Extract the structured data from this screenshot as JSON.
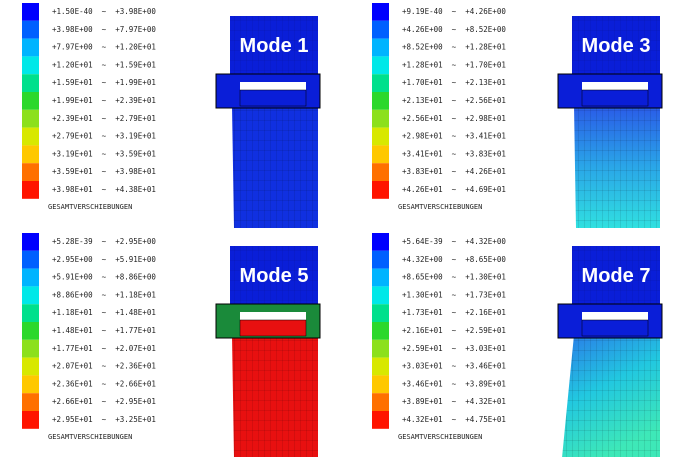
{
  "panels": [
    {
      "title": "Mode 1",
      "footer": "GESAMTVERSCHIEBUNGEN",
      "legend": [
        "+1.50E-40  ~  +3.98E+00",
        "+3.98E+00  ~  +7.97E+00",
        "+7.97E+00  ~  +1.20E+01",
        "+1.20E+01  ~  +1.59E+01",
        "+1.59E+01  ~  +1.99E+01",
        "+1.99E+01  ~  +2.39E+01",
        "+2.39E+01  ~  +2.79E+01",
        "+2.79E+01  ~  +3.19E+01",
        "+3.19E+01  ~  +3.59E+01",
        "+3.59E+01  ~  +3.98E+01",
        "+3.98E+01  ~  +4.38E+01"
      ]
    },
    {
      "title": "Mode 3",
      "footer": "GESAMTVERSCHIEBUNGEN",
      "legend": [
        "+9.19E-40  ~  +4.26E+00",
        "+4.26E+00  ~  +8.52E+00",
        "+8.52E+00  ~  +1.28E+01",
        "+1.28E+01  ~  +1.70E+01",
        "+1.70E+01  ~  +2.13E+01",
        "+2.13E+01  ~  +2.56E+01",
        "+2.56E+01  ~  +2.98E+01",
        "+2.98E+01  ~  +3.41E+01",
        "+3.41E+01  ~  +3.83E+01",
        "+3.83E+01  ~  +4.26E+01",
        "+4.26E+01  ~  +4.69E+01"
      ]
    },
    {
      "title": "Mode 5",
      "footer": "GESAMTVERSCHIEBUNGEN",
      "legend": [
        "+5.28E-39  ~  +2.95E+00",
        "+2.95E+00  ~  +5.91E+00",
        "+5.91E+00  ~  +8.86E+00",
        "+8.86E+00  ~  +1.18E+01",
        "+1.18E+01  ~  +1.48E+01",
        "+1.48E+01  ~  +1.77E+01",
        "+1.77E+01  ~  +2.07E+01",
        "+2.07E+01  ~  +2.36E+01",
        "+2.36E+01  ~  +2.66E+01",
        "+2.66E+01  ~  +2.95E+01",
        "+2.95E+01  ~  +3.25E+01"
      ]
    },
    {
      "title": "Mode 7",
      "footer": "GESAMTVERSCHIEBUNGEN",
      "legend": [
        "+5.64E-39  ~  +4.32E+00",
        "+4.32E+00  ~  +8.65E+00",
        "+8.65E+00  ~  +1.30E+01",
        "+1.30E+01  ~  +1.73E+01",
        "+1.73E+01  ~  +2.16E+01",
        "+2.16E+01  ~  +2.59E+01",
        "+2.59E+01  ~  +3.03E+01",
        "+3.03E+01  ~  +3.46E+01",
        "+3.46E+01  ~  +3.89E+01",
        "+3.89E+01  ~  +4.32E+01",
        "+4.32E+01  ~  +4.75E+01"
      ]
    }
  ]
}
